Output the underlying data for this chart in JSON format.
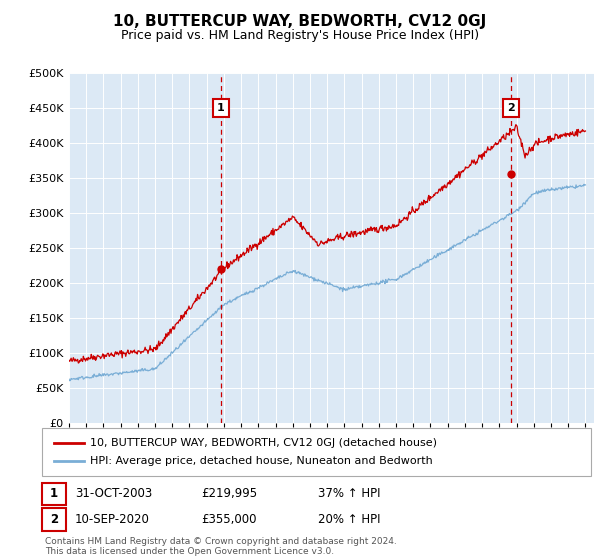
{
  "title": "10, BUTTERCUP WAY, BEDWORTH, CV12 0GJ",
  "subtitle": "Price paid vs. HM Land Registry's House Price Index (HPI)",
  "bg_color": "#dce9f5",
  "red_line_color": "#cc0000",
  "blue_line_color": "#7aaed6",
  "marker1_year": 2003.83,
  "marker1_price": 219995,
  "marker1_date": "31-OCT-2003",
  "marker1_pct": "37% ↑ HPI",
  "marker2_year": 2020.69,
  "marker2_price": 355000,
  "marker2_date": "10-SEP-2020",
  "marker2_pct": "20% ↑ HPI",
  "legend_line1": "10, BUTTERCUP WAY, BEDWORTH, CV12 0GJ (detached house)",
  "legend_line2": "HPI: Average price, detached house, Nuneaton and Bedworth",
  "footnote1": "Contains HM Land Registry data © Crown copyright and database right 2024.",
  "footnote2": "This data is licensed under the Open Government Licence v3.0.",
  "ylim_min": 0,
  "ylim_max": 500000,
  "xlim_min": 1995.0,
  "xlim_max": 2025.5,
  "yticks": [
    0,
    50000,
    100000,
    150000,
    200000,
    250000,
    300000,
    350000,
    400000,
    450000,
    500000
  ]
}
